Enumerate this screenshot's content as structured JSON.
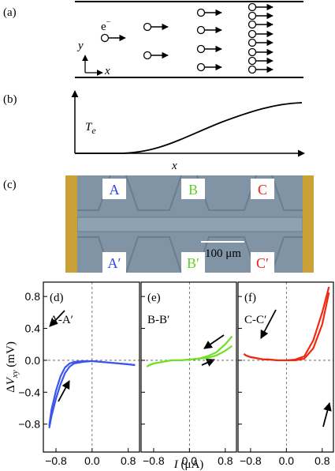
{
  "panel_a": {
    "label": "(a)",
    "electron": [
      "e",
      "−"
    ],
    "y_axis": "y",
    "x_axis": "x"
  },
  "panel_b": {
    "label": "(b)",
    "y_axis": [
      "T",
      "e"
    ],
    "x_axis": "x"
  },
  "panel_c": {
    "label": "(c)",
    "contacts": [
      "A",
      "B",
      "C",
      "A′",
      "B′",
      "C′"
    ],
    "scale_bar": "100 μm"
  },
  "chart_data": [
    {
      "type": "line",
      "label": "(d)",
      "subtitle": "A-A′",
      "ylabel": [
        "Δ",
        "V",
        "xy",
        " (mV)"
      ],
      "x": [
        -0.95,
        -0.9,
        -0.8,
        -0.7,
        -0.6,
        -0.5,
        -0.4,
        -0.2,
        0,
        0.2,
        0.4,
        0.6,
        0.8,
        0.95
      ],
      "series": [
        {
          "color": "#3a55f0",
          "values": [
            -0.82,
            -0.62,
            -0.38,
            -0.2,
            -0.09,
            -0.04,
            -0.02,
            -0.01,
            -0.01,
            -0.02,
            -0.03,
            -0.04,
            -0.05,
            -0.06
          ]
        },
        {
          "color": "#3a55f0",
          "values": [
            -0.85,
            -0.7,
            -0.48,
            -0.3,
            -0.16,
            -0.08,
            -0.04,
            -0.02,
            -0.01,
            -0.02,
            -0.03,
            -0.04,
            -0.05,
            -0.06
          ]
        }
      ],
      "xlim": [
        -1.08,
        1.05
      ],
      "ylim": [
        -1.15,
        0.98
      ],
      "xticks": [
        {
          "value": -0.8,
          "label": "−0.8"
        },
        {
          "value": 0,
          "label": "0.0"
        },
        0.8
      ],
      "yticks": [
        0.8,
        0.4,
        {
          "value": 0,
          "label": "0.0"
        },
        {
          "value": -0.4,
          "label": "−0.4"
        },
        {
          "value": -0.8,
          "label": "−0.8"
        }
      ],
      "show_ytick_labels": true
    },
    {
      "type": "line",
      "label": "(e)",
      "subtitle": "B-B′",
      "xlabel": [
        "I",
        " (μA)"
      ],
      "x": [
        -0.95,
        -0.9,
        -0.8,
        -0.7,
        -0.6,
        -0.5,
        -0.4,
        -0.2,
        0,
        0.2,
        0.4,
        0.6,
        0.8,
        0.95
      ],
      "series": [
        {
          "color": "#70e020",
          "values": [
            -0.08,
            -0.06,
            -0.04,
            -0.03,
            -0.02,
            -0.01,
            0,
            0,
            0.01,
            0.02,
            0.05,
            0.1,
            0.2,
            0.3
          ]
        },
        {
          "color": "#70e020",
          "values": [
            -0.08,
            -0.06,
            -0.04,
            -0.03,
            -0.02,
            -0.01,
            0,
            0,
            0.01,
            0.02,
            0.03,
            0.06,
            0.12,
            0.18
          ]
        }
      ],
      "xlim": [
        -1.08,
        1.05
      ],
      "ylim": [
        -1.15,
        0.98
      ],
      "xticks": [
        {
          "value": -0.8,
          "label": "−0.8"
        },
        {
          "value": 0,
          "label": "0.0"
        },
        0.8
      ],
      "yticks": [
        0.8,
        0.4,
        0,
        -0.4,
        -0.8
      ],
      "show_ytick_labels": false
    },
    {
      "type": "line",
      "label": "(f)",
      "subtitle": "C-C′",
      "x": [
        -0.95,
        -0.9,
        -0.8,
        -0.7,
        -0.6,
        -0.5,
        -0.4,
        -0.2,
        0,
        0.2,
        0.4,
        0.6,
        0.8,
        0.95
      ],
      "series": [
        {
          "color": "#f02a10",
          "values": [
            0.08,
            0.06,
            0.04,
            0.03,
            0.02,
            0.01,
            0.01,
            0,
            0,
            0.01,
            0.05,
            0.25,
            0.6,
            0.92
          ]
        },
        {
          "color": "#f02a10",
          "values": [
            0.08,
            0.06,
            0.04,
            0.03,
            0.02,
            0.01,
            0.01,
            0,
            0,
            0,
            0.02,
            0.15,
            0.45,
            0.85
          ]
        }
      ],
      "xlim": [
        -1.08,
        1.05
      ],
      "ylim": [
        -1.15,
        0.98
      ],
      "xticks": [
        {
          "value": -0.8,
          "label": "−0.8"
        },
        {
          "value": 0,
          "label": "0.0"
        },
        0.8
      ],
      "yticks": [
        0.8,
        0.4,
        0,
        -0.4,
        -0.8
      ],
      "show_ytick_labels": false
    }
  ]
}
